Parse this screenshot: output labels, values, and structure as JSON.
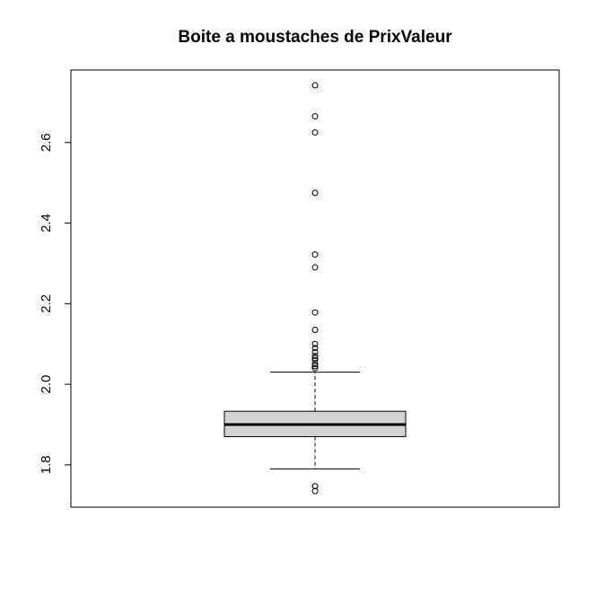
{
  "chart_data": {
    "type": "boxplot",
    "title": "Boite a moustaches de PrixValeur",
    "xlabel": "",
    "ylabel": "",
    "ylim": [
      1.695,
      2.78
    ],
    "yticks": [
      1.8,
      2.0,
      2.2,
      2.4,
      2.6
    ],
    "ytick_labels": [
      "1.8",
      "2.0",
      "2.2",
      "2.4",
      "2.6"
    ],
    "grid": false,
    "box": {
      "lower_whisker": 1.79,
      "q1": 1.87,
      "median": 1.9,
      "q3": 1.933,
      "upper_whisker": 2.03
    },
    "outliers": [
      1.735,
      1.747,
      2.04,
      2.045,
      2.05,
      2.06,
      2.065,
      2.07,
      2.08,
      2.09,
      2.1,
      2.135,
      2.178,
      2.29,
      2.322,
      2.475,
      2.625,
      2.665,
      2.742
    ],
    "colors": {
      "box_fill": "#d3d3d3",
      "line": "#000000",
      "background": "#ffffff"
    }
  }
}
